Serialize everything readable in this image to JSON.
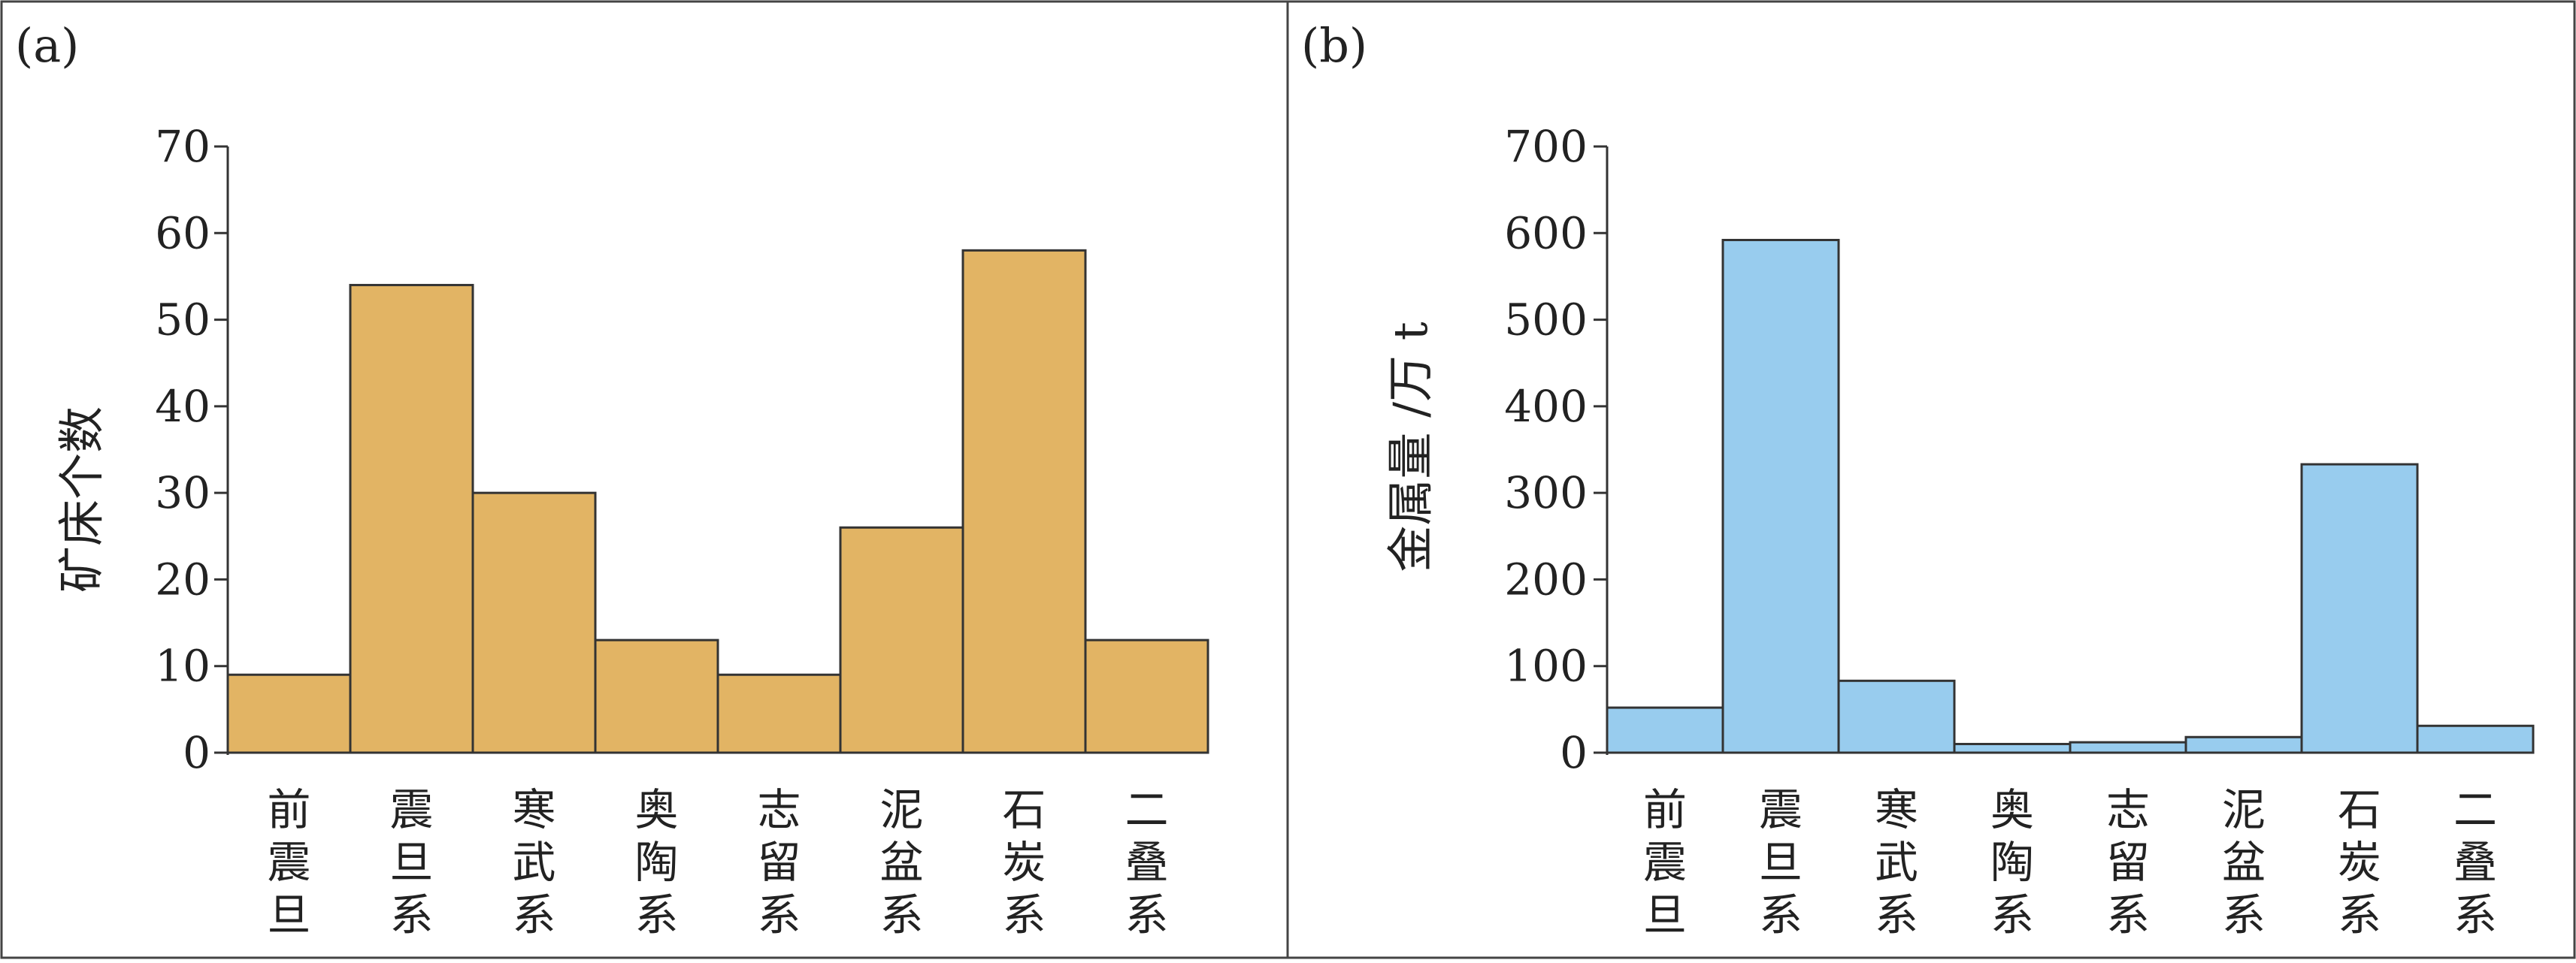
{
  "chart_data": [
    {
      "panel_label": "(a)",
      "type": "bar",
      "categories": [
        "前震旦",
        "震旦系",
        "寒武系",
        "奥陶系",
        "志留系",
        "泥盆系",
        "石炭系",
        "二叠系"
      ],
      "values": [
        9,
        54,
        30,
        13,
        9,
        26,
        58,
        13
      ],
      "ylabel": "矿床个数",
      "xlabel": "",
      "ylim": [
        0,
        70
      ],
      "yticks": [
        "0",
        "10",
        "20",
        "30",
        "40",
        "50",
        "60",
        "70"
      ],
      "bar_color": "#E2B464",
      "grid": false
    },
    {
      "panel_label": "(b)",
      "type": "bar",
      "categories": [
        "前震旦",
        "震旦系",
        "寒武系",
        "奥陶系",
        "志留系",
        "泥盆系",
        "石炭系",
        "二叠系"
      ],
      "values": [
        52,
        592,
        83,
        10,
        12,
        18,
        333,
        31
      ],
      "ylabel": "金属量 /万 t",
      "xlabel": "",
      "ylim": [
        0,
        700
      ],
      "yticks": [
        "0",
        "100",
        "200",
        "300",
        "400",
        "500",
        "600",
        "700"
      ],
      "bar_color": "#98CCEE",
      "grid": false
    }
  ]
}
